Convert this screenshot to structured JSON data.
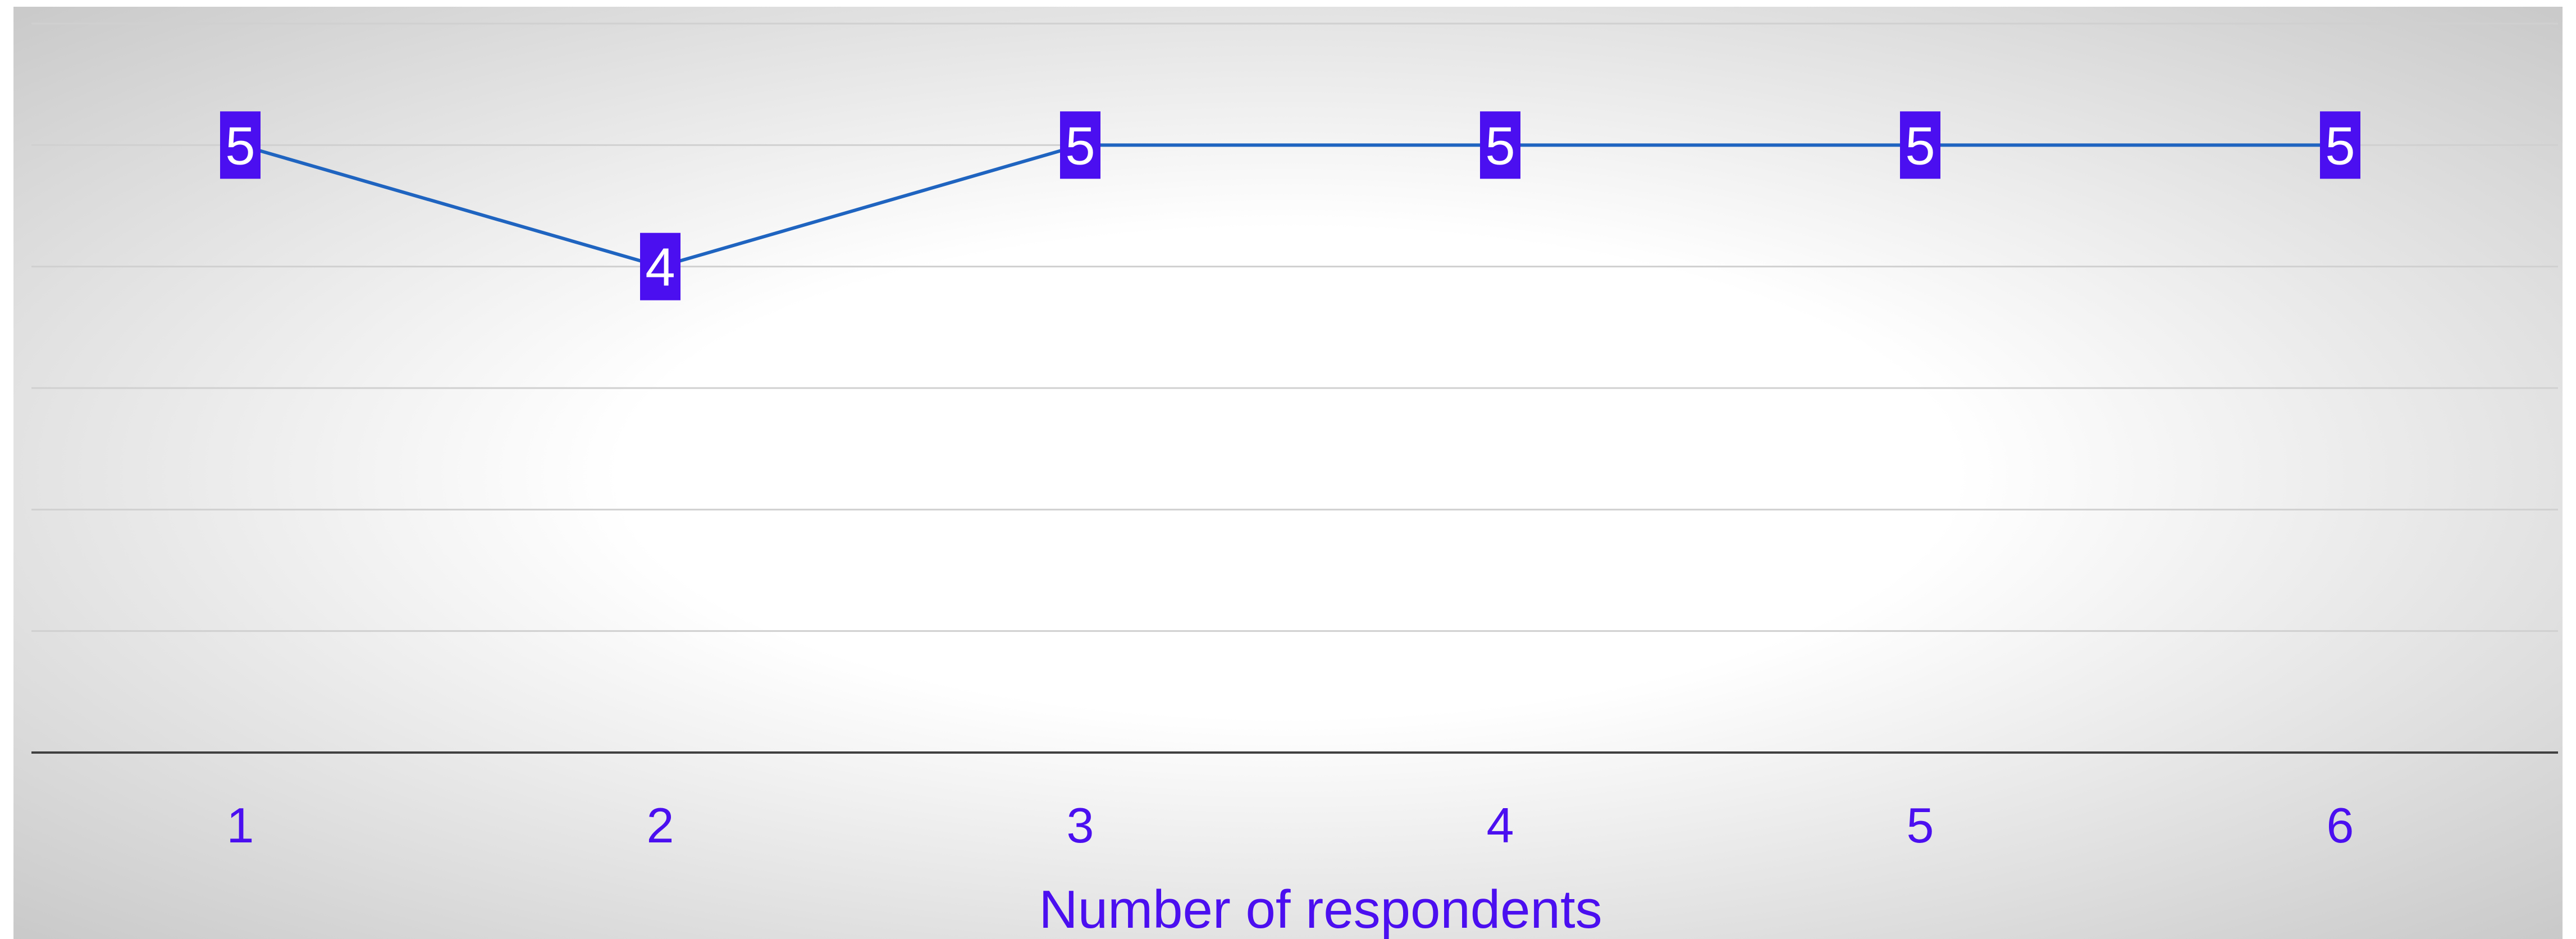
{
  "chart_data": {
    "type": "line",
    "categories": [
      "1",
      "2",
      "3",
      "4",
      "5",
      "6"
    ],
    "series": [
      {
        "values": [
          5,
          4,
          5,
          5,
          5,
          5
        ]
      }
    ],
    "title": "",
    "xlabel": "Number of respondents",
    "ylabel": "",
    "ylim": [
      0,
      6
    ],
    "grid": true,
    "legend": "none",
    "data_labels": true,
    "colors": {
      "line": "#1f64c0",
      "label_bg": "#4b0ff0",
      "label_text": "#ffffff",
      "axis_text": "#4b0ff0",
      "gridline": "#d0d0d0",
      "baseline": "#404040",
      "plot_edge": "#c8c8c8",
      "plot_center": "#ffffff"
    }
  }
}
